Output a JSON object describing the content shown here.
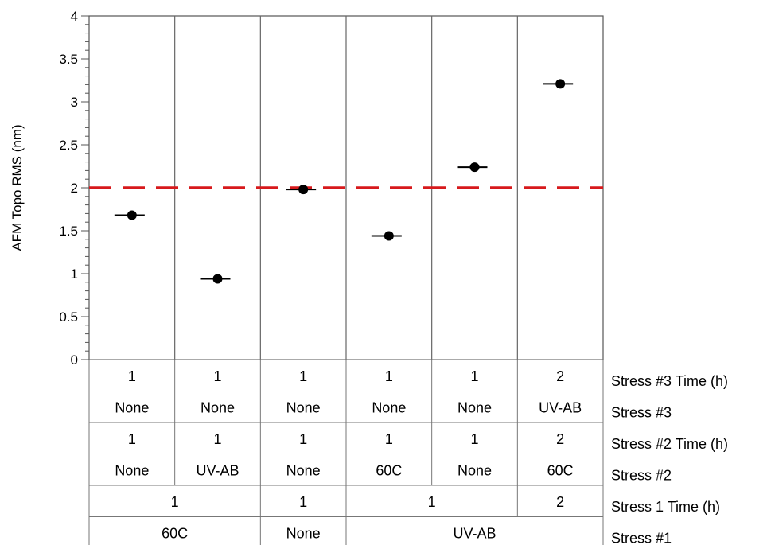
{
  "chart_data": {
    "type": "scatter",
    "title": "",
    "ylabel": "AFM Topo RMS (nm)",
    "ylim": [
      0,
      4
    ],
    "yticks": [
      "0",
      "0.5",
      "1",
      "1.5",
      "2",
      "2.5",
      "3",
      "3.5",
      "4"
    ],
    "grid": false,
    "reference_line": {
      "y": 2,
      "style": "dashed",
      "color": "#d7191c"
    },
    "marker_color": "#000000",
    "values": [
      1.68,
      0.94,
      1.98,
      1.44,
      2.24,
      3.21
    ],
    "factor_rows": [
      {
        "label": "Stress #3 Time (h)",
        "cells": [
          {
            "text": "1",
            "span": 1
          },
          {
            "text": "1",
            "span": 1
          },
          {
            "text": "1",
            "span": 1
          },
          {
            "text": "1",
            "span": 1
          },
          {
            "text": "1",
            "span": 1
          },
          {
            "text": "2",
            "span": 1
          }
        ]
      },
      {
        "label": "Stress #3",
        "cells": [
          {
            "text": "None",
            "span": 1
          },
          {
            "text": "None",
            "span": 1
          },
          {
            "text": "None",
            "span": 1
          },
          {
            "text": "None",
            "span": 1
          },
          {
            "text": "None",
            "span": 1
          },
          {
            "text": "UV-AB",
            "span": 1
          }
        ]
      },
      {
        "label": "Stress #2 Time (h)",
        "cells": [
          {
            "text": "1",
            "span": 1
          },
          {
            "text": "1",
            "span": 1
          },
          {
            "text": "1",
            "span": 1
          },
          {
            "text": "1",
            "span": 1
          },
          {
            "text": "1",
            "span": 1
          },
          {
            "text": "2",
            "span": 1
          }
        ]
      },
      {
        "label": "Stress #2",
        "cells": [
          {
            "text": "None",
            "span": 1
          },
          {
            "text": "UV-AB",
            "span": 1
          },
          {
            "text": "None",
            "span": 1
          },
          {
            "text": "60C",
            "span": 1
          },
          {
            "text": "None",
            "span": 1
          },
          {
            "text": "60C",
            "span": 1
          }
        ]
      },
      {
        "label": "Stress 1 Time (h)",
        "cells": [
          {
            "text": "1",
            "span": 2
          },
          {
            "text": "1",
            "span": 1
          },
          {
            "text": "1",
            "span": 2
          },
          {
            "text": "2",
            "span": 1
          }
        ]
      },
      {
        "label": "Stress #1",
        "cells": [
          {
            "text": "60C",
            "span": 2
          },
          {
            "text": "None",
            "span": 1
          },
          {
            "text": "UV-AB",
            "span": 3
          }
        ]
      }
    ]
  }
}
